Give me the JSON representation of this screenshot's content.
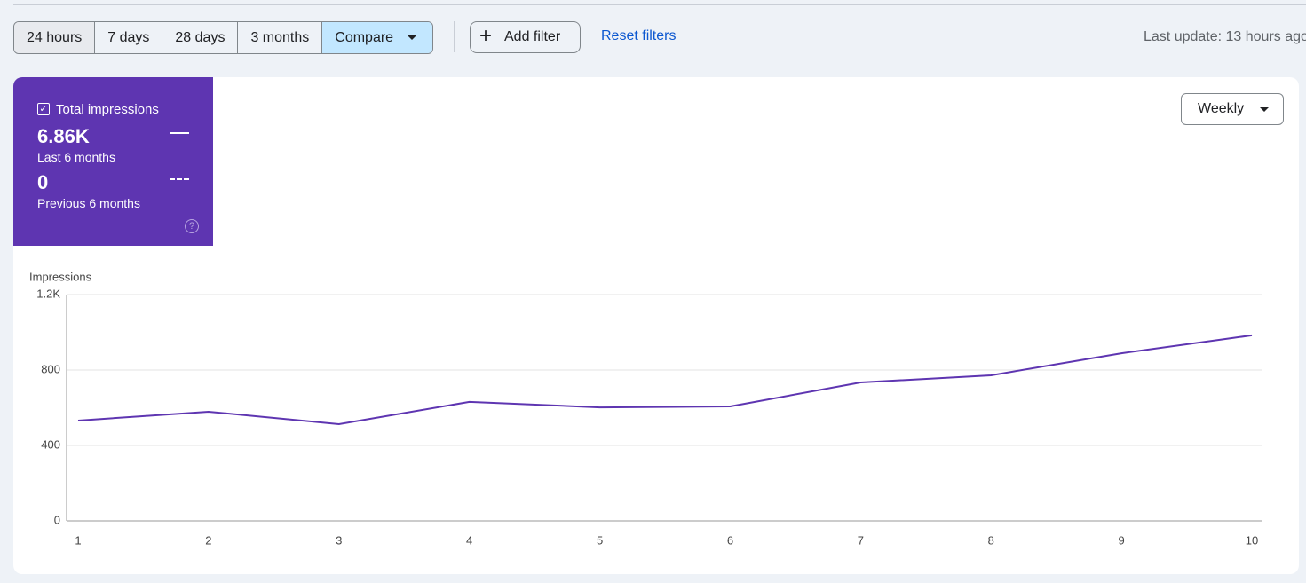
{
  "toolbar": {
    "ranges": [
      "24 hours",
      "7 days",
      "28 days",
      "3 months"
    ],
    "compare": "Compare",
    "add_filter": "Add filter",
    "reset_filters": "Reset filters",
    "last_update": "Last update: 13 hours ago"
  },
  "metric": {
    "label": "Total impressions",
    "current_value": "6.86K",
    "current_period": "Last 6 months",
    "previous_value": "0",
    "previous_period": "Previous 6 months"
  },
  "granularity": "Weekly",
  "chart_data": {
    "type": "line",
    "y_label": "Impressions",
    "categories": [
      "1",
      "2",
      "3",
      "4",
      "5",
      "6",
      "7",
      "8",
      "9",
      "10"
    ],
    "series": [
      {
        "name": "Total impressions",
        "color": "#5e35b1",
        "values": [
          532,
          579,
          513,
          631,
          602,
          607,
          734,
          772,
          889,
          984
        ]
      }
    ],
    "ylim": [
      0,
      1200
    ],
    "yticks": [
      0,
      400,
      800,
      {
        "value": 1200,
        "label": "1.2K"
      }
    ],
    "grid": true
  }
}
